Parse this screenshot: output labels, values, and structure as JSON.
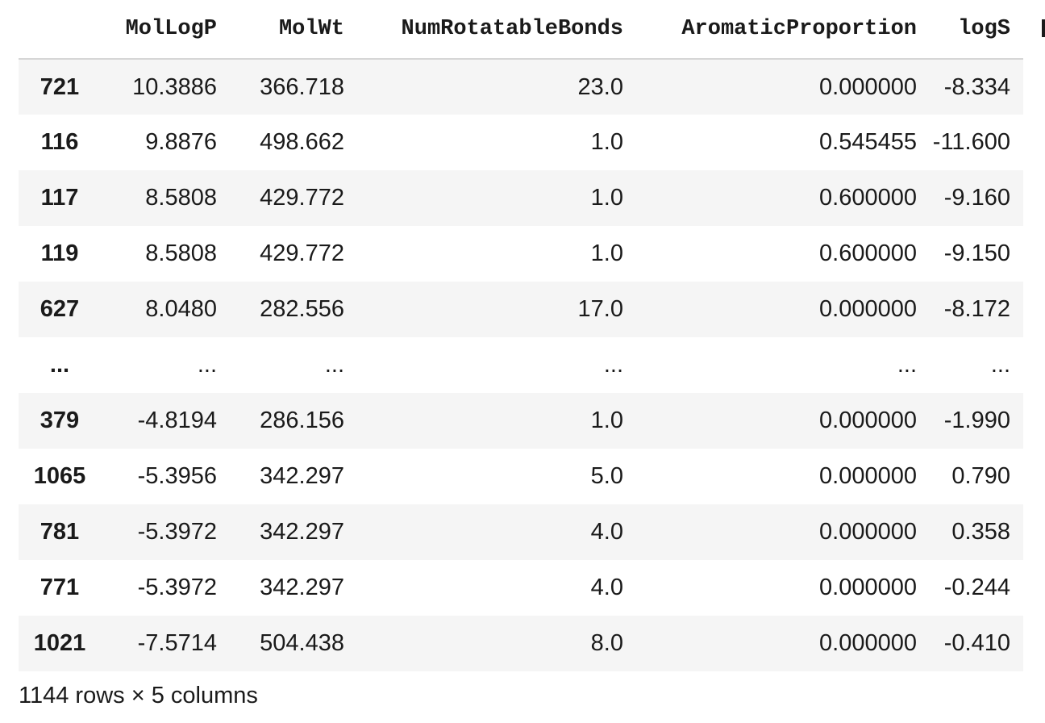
{
  "table": {
    "columns": [
      "MolLogP",
      "MolWt",
      "NumRotatableBonds",
      "AromaticProportion",
      "logS"
    ],
    "rows": [
      {
        "index": "721",
        "cells": [
          "10.3886",
          "366.718",
          "23.0",
          "0.000000",
          "-8.334"
        ]
      },
      {
        "index": "116",
        "cells": [
          "9.8876",
          "498.662",
          "1.0",
          "0.545455",
          "-11.600"
        ]
      },
      {
        "index": "117",
        "cells": [
          "8.5808",
          "429.772",
          "1.0",
          "0.600000",
          "-9.160"
        ]
      },
      {
        "index": "119",
        "cells": [
          "8.5808",
          "429.772",
          "1.0",
          "0.600000",
          "-9.150"
        ]
      },
      {
        "index": "627",
        "cells": [
          "8.0480",
          "282.556",
          "17.0",
          "0.000000",
          "-8.172"
        ]
      },
      {
        "index": "...",
        "cells": [
          "...",
          "...",
          "...",
          "...",
          "..."
        ]
      },
      {
        "index": "379",
        "cells": [
          "-4.8194",
          "286.156",
          "1.0",
          "0.000000",
          "-1.990"
        ]
      },
      {
        "index": "1065",
        "cells": [
          "-5.3956",
          "342.297",
          "5.0",
          "0.000000",
          "0.790"
        ]
      },
      {
        "index": "781",
        "cells": [
          "-5.3972",
          "342.297",
          "4.0",
          "0.000000",
          "0.358"
        ]
      },
      {
        "index": "771",
        "cells": [
          "-5.3972",
          "342.297",
          "4.0",
          "0.000000",
          "-0.244"
        ]
      },
      {
        "index": "1021",
        "cells": [
          "-7.5714",
          "504.438",
          "8.0",
          "0.000000",
          "-0.410"
        ]
      }
    ]
  },
  "caption": "1144 rows × 5 columns"
}
